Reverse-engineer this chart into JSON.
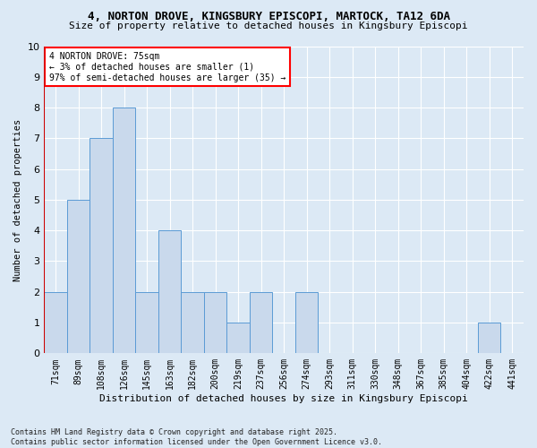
{
  "title1": "4, NORTON DROVE, KINGSBURY EPISCOPI, MARTOCK, TA12 6DA",
  "title2": "Size of property relative to detached houses in Kingsbury Episcopi",
  "xlabel": "Distribution of detached houses by size in Kingsbury Episcopi",
  "ylabel": "Number of detached properties",
  "categories": [
    "71sqm",
    "89sqm",
    "108sqm",
    "126sqm",
    "145sqm",
    "163sqm",
    "182sqm",
    "200sqm",
    "219sqm",
    "237sqm",
    "256sqm",
    "274sqm",
    "293sqm",
    "311sqm",
    "330sqm",
    "348sqm",
    "367sqm",
    "385sqm",
    "404sqm",
    "422sqm",
    "441sqm"
  ],
  "values": [
    2,
    5,
    7,
    8,
    2,
    4,
    2,
    2,
    1,
    2,
    0,
    2,
    0,
    0,
    0,
    0,
    0,
    0,
    0,
    1,
    0
  ],
  "bar_color": "#c9d9ec",
  "bar_edge_color": "#5b9bd5",
  "ylim": [
    0,
    10
  ],
  "yticks": [
    0,
    1,
    2,
    3,
    4,
    5,
    6,
    7,
    8,
    9,
    10
  ],
  "annotation_text": "4 NORTON DROVE: 75sqm\n← 3% of detached houses are smaller (1)\n97% of semi-detached houses are larger (35) →",
  "footer": "Contains HM Land Registry data © Crown copyright and database right 2025.\nContains public sector information licensed under the Open Government Licence v3.0.",
  "background_color": "#dce9f5",
  "plot_bg_color": "#dce9f5",
  "grid_color": "#ffffff",
  "vline_color": "#cc0000"
}
